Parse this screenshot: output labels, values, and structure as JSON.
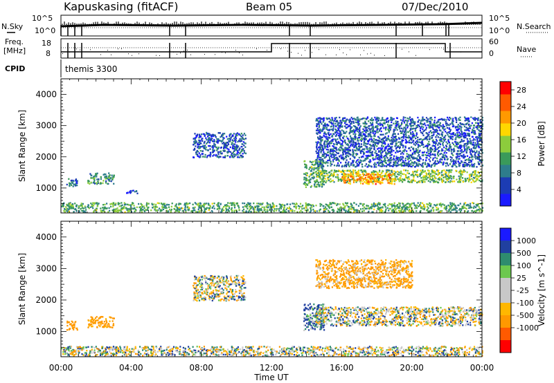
{
  "header": {
    "station": "Kapuskasing (fitACF)",
    "beam": "Beam 05",
    "date": "07/Dec/2010"
  },
  "top_panels": {
    "nsky_label": "N.Sky",
    "nsearch_label": "N.Search",
    "nsky_ticks": [
      "10^5",
      "10^0"
    ],
    "freq_label_1": "Freq.",
    "freq_label_2": "[MHz]",
    "freq_ticks": [
      "18",
      "8"
    ],
    "nave_label": "Nave",
    "nave_ticks": [
      "60",
      "0"
    ],
    "cpid_label": "CPID",
    "cpid_value": "themis 3300"
  },
  "colors": {
    "power_scale": [
      "#1a1aff",
      "#1c3cb4",
      "#2e7d8c",
      "#3a9a5a",
      "#8ccc3c",
      "#ffd700",
      "#ff9900",
      "#ff5a00",
      "#ff0000"
    ],
    "velocity_scale": [
      "#ff0000",
      "#ff5a00",
      "#ff9900",
      "#ffb700",
      "#c8c8c8",
      "#c8c8c8",
      "#6cc84e",
      "#2e8c6e",
      "#2040a0",
      "#1a1aff"
    ],
    "ground_scatter": "#c8c8c8"
  },
  "chart_data": [
    {
      "type": "heatmap",
      "name": "power",
      "ylabel": "Slant Range [km]",
      "xlabel": "Time UT",
      "x_ticks": [
        "00:00",
        "04:00",
        "08:00",
        "12:00",
        "16:00",
        "20:00",
        "00:00"
      ],
      "y_ticks": [
        1000,
        2000,
        3000,
        4000
      ],
      "ylim": [
        200,
        4500
      ],
      "xlim_hours": [
        0,
        24
      ],
      "colorbar": {
        "label": "Power [dB]",
        "ticks": [
          4,
          8,
          12,
          16,
          20,
          24,
          28
        ],
        "range": [
          0,
          30
        ]
      },
      "regions": [
        {
          "t": [
            0.3,
            0.9
          ],
          "r": [
            1050,
            1350
          ],
          "value": 8
        },
        {
          "t": [
            1.5,
            3.0
          ],
          "r": [
            1150,
            1500
          ],
          "value": 10
        },
        {
          "t": [
            3.7,
            4.5
          ],
          "r": [
            850,
            950
          ],
          "value": 6
        },
        {
          "t": [
            7.5,
            10.5
          ],
          "r": [
            2000,
            2800
          ],
          "value": 6
        },
        {
          "t": [
            13.8,
            15.0
          ],
          "r": [
            1050,
            1900
          ],
          "value": 12
        },
        {
          "t": [
            14.5,
            24.0
          ],
          "r": [
            1200,
            1600
          ],
          "value": 14
        },
        {
          "t": [
            14.5,
            24.0
          ],
          "r": [
            1700,
            3300
          ],
          "value": 6
        },
        {
          "t": [
            16.0,
            19.0
          ],
          "r": [
            1150,
            1500
          ],
          "value": 22
        },
        {
          "t": [
            0.0,
            24.0
          ],
          "r": [
            250,
            550
          ],
          "value": 12
        }
      ]
    },
    {
      "type": "heatmap",
      "name": "velocity",
      "ylabel": "Slant Range [km]",
      "xlabel": "Time UT",
      "x_ticks": [
        "00:00",
        "04:00",
        "08:00",
        "12:00",
        "16:00",
        "20:00",
        "00:00"
      ],
      "y_ticks": [
        1000,
        2000,
        3000,
        4000
      ],
      "ylim": [
        200,
        4500
      ],
      "xlim_hours": [
        0,
        24
      ],
      "colorbar": {
        "label": "Velocity [m s^-1]",
        "ticks": [
          1000,
          500,
          100,
          25,
          -25,
          -100,
          -500,
          -1000
        ]
      },
      "regions": [
        {
          "t": [
            0.3,
            0.9
          ],
          "r": [
            1050,
            1350
          ],
          "value": -300
        },
        {
          "t": [
            1.5,
            3.0
          ],
          "r": [
            1150,
            1500
          ],
          "value": -200
        },
        {
          "t": [
            7.5,
            10.5
          ],
          "r": [
            2000,
            2800
          ],
          "value": 0
        },
        {
          "t": [
            13.8,
            15.0
          ],
          "r": [
            1050,
            1900
          ],
          "value": 120
        },
        {
          "t": [
            14.5,
            24.0
          ],
          "r": [
            1200,
            1800
          ],
          "value": 0
        },
        {
          "t": [
            14.5,
            20.0
          ],
          "r": [
            2400,
            3300
          ],
          "value": -150
        },
        {
          "t": [
            0.0,
            24.0
          ],
          "r": [
            250,
            550
          ],
          "value": 0
        }
      ]
    }
  ]
}
